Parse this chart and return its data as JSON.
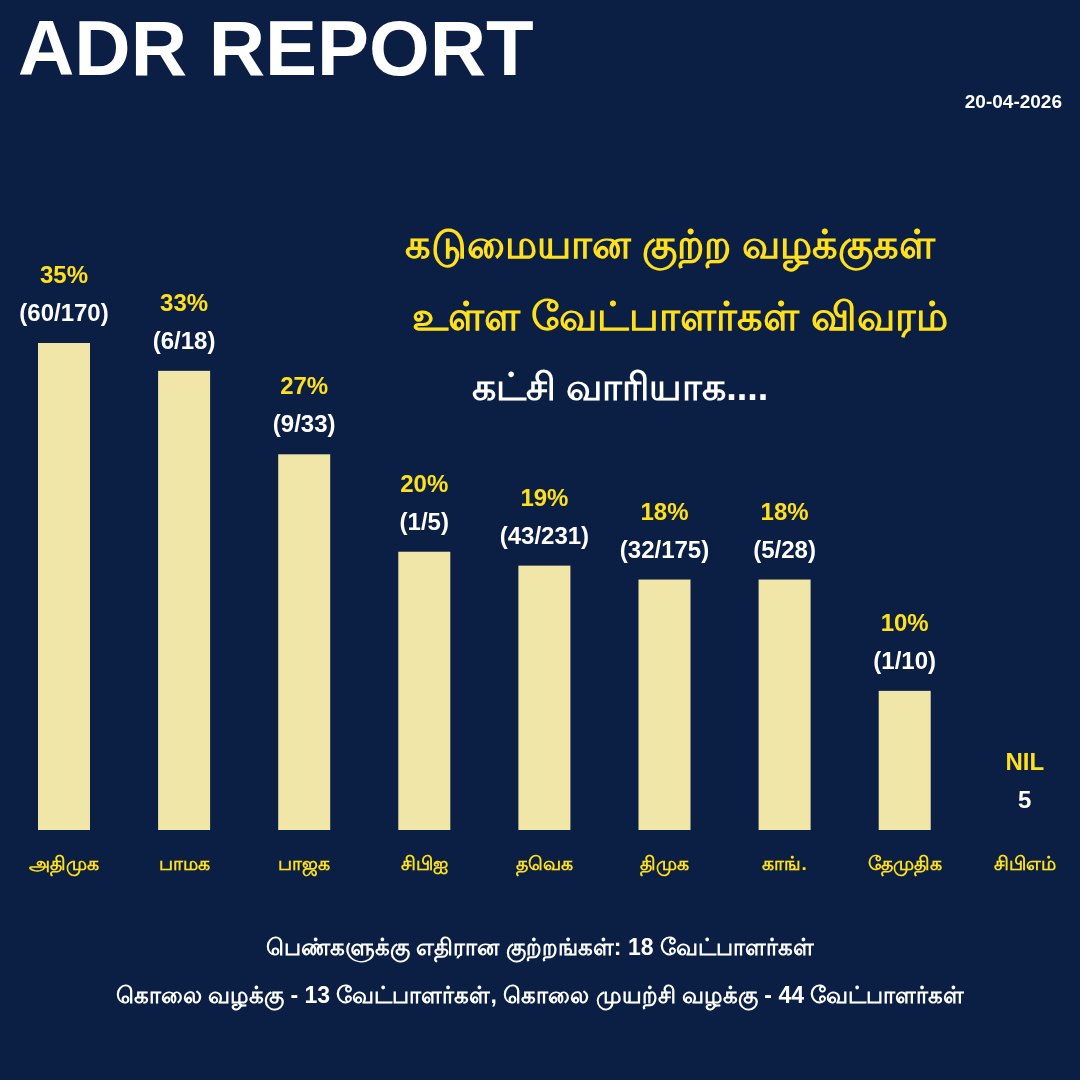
{
  "chart_data": {
    "type": "bar",
    "title": "ADR REPORT",
    "subtitle": "கடுமையான குற்ற வழக்குகள் உள்ள வேட்பாளர்கள் விவரம்",
    "categories": [
      "அதிமுக",
      "பாமக",
      "பாஜக",
      "சிபிஐ",
      "தவெக",
      "திமுக",
      "காங்.",
      "தேமுதிக",
      "சிபிஎம்"
    ],
    "values": [
      35,
      33,
      27,
      20,
      19,
      18,
      18,
      10,
      0
    ],
    "value_labels": [
      "35%",
      "33%",
      "27%",
      "20%",
      "19%",
      "18%",
      "18%",
      "10%",
      "NIL"
    ],
    "color": "#f0e6a8",
    "annotations": [
      "கட்சி வாரியாக....",
      "20-04-2026",
      "பெண்களுக்கு எதிரான குற்றங்கள்: 18 வேட்பாளர்கள்",
      "கொலை வழக்கு - 13 வேட்பாளர்கள், கொலை முயற்சி வழக்கு - 44 வேட்பாளர்கள்",
      {
        "text": "(60/170)",
        "x": "அதிமுக",
        "y": 35
      },
      {
        "text": "(6/18)",
        "x": "பாமக",
        "y": 33
      },
      {
        "text": "(9/33)",
        "x": "பாஜக",
        "y": 27
      },
      {
        "text": "(1/5)",
        "x": "சிபிஐ",
        "y": 20
      },
      {
        "text": "(43/231)",
        "x": "தவெக",
        "y": 19
      },
      {
        "text": "(32/175)",
        "x": "திமுக",
        "y": 18
      },
      {
        "text": "(5/28)",
        "x": "காங்.",
        "y": 18
      },
      {
        "text": "(1/10)",
        "x": "தேமுதிக",
        "y": 10
      },
      {
        "text": "5",
        "x": "சிபிஎம்",
        "y": 0
      }
    ]
  }
}
